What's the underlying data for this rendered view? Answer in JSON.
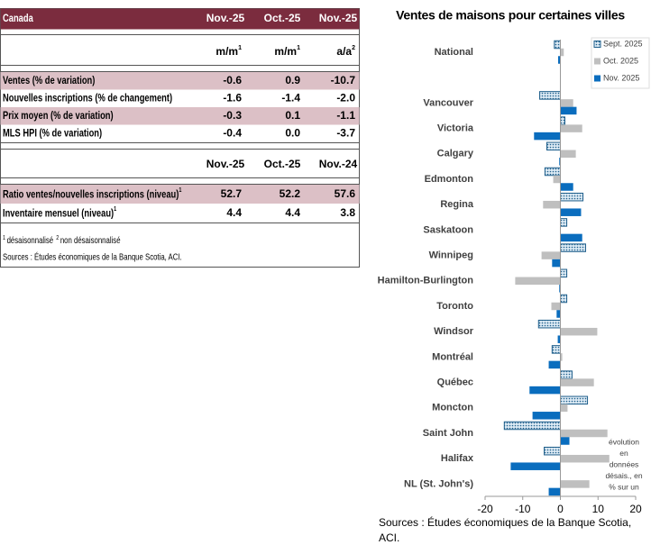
{
  "table": {
    "header": [
      "Canada",
      "Nov.-25",
      "Oct.-25",
      "Nov.-25"
    ],
    "units": [
      {
        "text": "m/m",
        "note": "1"
      },
      {
        "text": "m/m",
        "note": "1"
      },
      {
        "text": "a/a",
        "note": "2"
      }
    ],
    "rows": [
      {
        "label": "Ventes (% de variation)",
        "values": [
          "-0.6",
          "0.9",
          "-10.7"
        ]
      },
      {
        "label": "Nouvelles inscriptions (% de changement)",
        "values": [
          "-1.6",
          "-1.4",
          "-2.0"
        ]
      },
      {
        "label": "Prix moyen (% de variation)",
        "values": [
          "-0.3",
          "0.1",
          "-1.1"
        ]
      },
      {
        "label": "MLS HPI (% de variation)",
        "values": [
          "-0.4",
          "0.0",
          "-3.7"
        ]
      }
    ],
    "header2": [
      "Nov.-25",
      "Oct.-25",
      "Nov.-24"
    ],
    "rows2": [
      {
        "label": "Ratio ventes/nouvelles inscriptions (niveau)",
        "note": "1",
        "values": [
          "52.7",
          "52.2",
          "57.6"
        ]
      },
      {
        "label": "Inventaire mensuel (niveau)",
        "note": "1",
        "values": [
          "4.4",
          "4.4",
          "3.8"
        ]
      }
    ],
    "footnotes": [
      {
        "note": "1",
        "text": "désaisonnalisé"
      },
      {
        "note": "2",
        "text": "non désaisonnalisé"
      }
    ],
    "source": "Sources : Études économiques de la Banque Scotia, ACI."
  },
  "chart_data": {
    "type": "hbar",
    "title": "Ventes de maisons pour certaines villes",
    "categories": [
      "National",
      null,
      "Vancouver",
      "Victoria",
      "Calgary",
      "Edmonton",
      "Regina",
      "Saskatoon",
      "Winnipeg",
      "Hamilton-Burlington",
      "Toronto",
      "Windsor",
      "Montréal",
      "Québec",
      "Moncton",
      "Saint John",
      "Halifax",
      "NL (St. John's)"
    ],
    "series": [
      {
        "name": "Sept. 2025",
        "color": "#1f5f8b",
        "pattern": "dots",
        "values": [
          -1.6,
          null,
          -5.5,
          1.2,
          -3.6,
          -4.1,
          6.0,
          1.7,
          6.7,
          1.7,
          1.7,
          -5.8,
          -2.2,
          3.1,
          7.2,
          -14.9,
          -4.3,
          0
        ]
      },
      {
        "name": "Oct. 2025",
        "color": "#bfbfbf",
        "values": [
          0.9,
          null,
          3.4,
          5.8,
          4.1,
          -1.9,
          -4.6,
          0,
          -5.0,
          -12.0,
          -2.4,
          9.8,
          0.5,
          8.9,
          1.9,
          12.5,
          13.0,
          7.7
        ]
      },
      {
        "name": "Nov. 2025",
        "color": "#0a6dbe",
        "values": [
          -0.6,
          null,
          4.3,
          -7.0,
          -0.3,
          3.4,
          5.5,
          5.8,
          -2.2,
          -0.3,
          -1.0,
          -0.7,
          -3.1,
          -8.2,
          -7.4,
          2.4,
          -13.2,
          -3.1
        ]
      }
    ],
    "xlim": [
      -20,
      20
    ],
    "xticks": [
      -20,
      -10,
      0,
      10,
      20
    ],
    "legend": "upper right",
    "annotation": [
      "évolution",
      "en",
      "données",
      "désais., en",
      "% sur un"
    ],
    "source": "Sources : Études économiques  de la Banque Scotia, ACI."
  }
}
